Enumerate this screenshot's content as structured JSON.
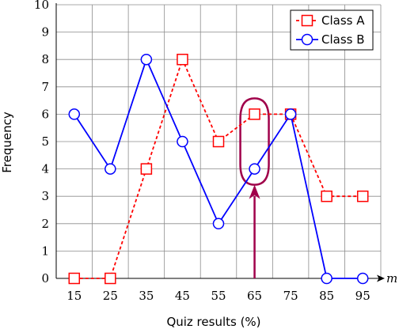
{
  "chart_data": {
    "type": "line",
    "xlabel": "Quiz results (%)",
    "ylabel": "Frequency",
    "x_axis_symbol": "m",
    "x": [
      15,
      25,
      35,
      45,
      55,
      65,
      75,
      85,
      95
    ],
    "xlim": [
      15,
      95
    ],
    "ylim": [
      0,
      10
    ],
    "yticks": [
      0,
      1,
      2,
      3,
      4,
      5,
      6,
      7,
      8,
      9,
      10
    ],
    "grid": true,
    "legend_position": "top-right",
    "series": [
      {
        "name": "Class A",
        "values": [
          0,
          0,
          4,
          8,
          5,
          6,
          6,
          3,
          3
        ],
        "color": "#ff0000",
        "marker": "square",
        "line_style": "dashed"
      },
      {
        "name": "Class B",
        "values": [
          6,
          4,
          8,
          5,
          2,
          4,
          6,
          0,
          0
        ],
        "color": "#0000ff",
        "marker": "circle",
        "line_style": "solid"
      }
    ],
    "annotations": [
      {
        "type": "highlight-ellipse-with-arrow",
        "x": 65,
        "y_range": [
          4,
          6
        ],
        "color": "#a0004a"
      }
    ]
  }
}
